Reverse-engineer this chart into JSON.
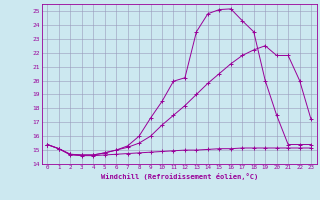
{
  "xlabel": "Windchill (Refroidissement éolien,°C)",
  "xlim": [
    -0.5,
    23.5
  ],
  "ylim": [
    14,
    25.5
  ],
  "xticks": [
    0,
    1,
    2,
    3,
    4,
    5,
    6,
    7,
    8,
    9,
    10,
    11,
    12,
    13,
    14,
    15,
    16,
    17,
    18,
    19,
    20,
    21,
    22,
    23
  ],
  "yticks": [
    14,
    15,
    16,
    17,
    18,
    19,
    20,
    21,
    22,
    23,
    24,
    25
  ],
  "bg_color": "#cce8f0",
  "grid_color": "#9999bb",
  "line_color": "#990099",
  "line1_x": [
    0,
    1,
    2,
    3,
    4,
    5,
    6,
    7,
    8,
    9,
    10,
    11,
    12,
    13,
    14,
    15,
    16,
    17,
    18,
    19,
    20,
    21,
    22,
    23
  ],
  "line1_y": [
    15.4,
    15.1,
    14.65,
    14.6,
    14.6,
    14.65,
    14.7,
    14.75,
    14.8,
    14.85,
    14.9,
    14.95,
    15.0,
    15.0,
    15.05,
    15.1,
    15.1,
    15.15,
    15.15,
    15.15,
    15.15,
    15.15,
    15.15,
    15.15
  ],
  "line2_x": [
    0,
    1,
    2,
    3,
    4,
    5,
    6,
    7,
    8,
    9,
    10,
    11,
    12,
    13,
    14,
    15,
    16,
    17,
    18,
    19,
    20,
    21,
    22,
    23
  ],
  "line2_y": [
    15.4,
    15.1,
    14.7,
    14.65,
    14.65,
    14.8,
    15.0,
    15.2,
    15.5,
    16.0,
    16.8,
    17.5,
    18.2,
    19.0,
    19.8,
    20.5,
    21.2,
    21.8,
    22.2,
    22.5,
    21.8,
    21.8,
    20.0,
    17.2
  ],
  "line3_x": [
    0,
    1,
    2,
    3,
    4,
    5,
    6,
    7,
    8,
    9,
    10,
    11,
    12,
    13,
    14,
    15,
    16,
    17,
    18,
    19,
    20,
    21,
    22,
    23
  ],
  "line3_y": [
    15.4,
    15.1,
    14.7,
    14.65,
    14.65,
    14.8,
    15.0,
    15.3,
    16.0,
    17.3,
    18.5,
    19.95,
    20.2,
    23.5,
    24.8,
    25.1,
    25.15,
    24.3,
    23.5,
    20.0,
    17.5,
    15.4,
    15.4,
    15.4
  ]
}
